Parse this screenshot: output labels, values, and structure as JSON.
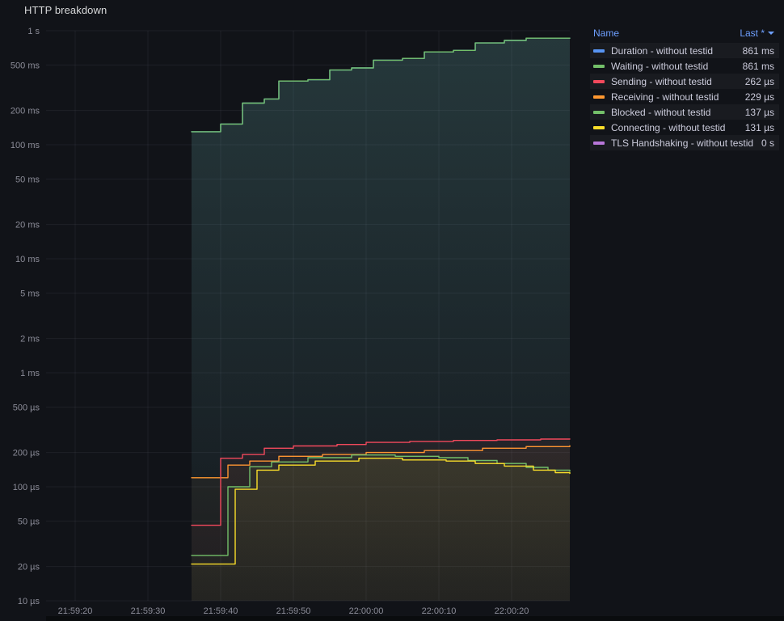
{
  "panel": {
    "title": "HTTP breakdown"
  },
  "legend": {
    "columns": {
      "name": "Name",
      "last": "Last *"
    },
    "rows": [
      {
        "label": "Duration - without testid",
        "value": "861 ms",
        "color": "#5794F2"
      },
      {
        "label": "Waiting - without testid",
        "value": "861 ms",
        "color": "#73BF69"
      },
      {
        "label": "Sending - without testid",
        "value": "262 µs",
        "color": "#F2495C"
      },
      {
        "label": "Receiving - without testid",
        "value": "229 µs",
        "color": "#FF9830"
      },
      {
        "label": "Blocked - without testid",
        "value": "137 µs",
        "color": "#73BF69"
      },
      {
        "label": "Connecting - without testid",
        "value": "131 µs",
        "color": "#FADE2A"
      },
      {
        "label": "TLS Handshaking - without testid",
        "value": "0 s",
        "color": "#B877D9"
      }
    ]
  },
  "chart_data": {
    "type": "line",
    "line_interpolation": "step-after",
    "title": "HTTP breakdown",
    "y_scale": "log",
    "y_unit": "seconds",
    "grid": true,
    "legend_position": "right",
    "x_range": [
      "21:59:16",
      "22:00:28"
    ],
    "y_range": [
      1e-05,
      1
    ],
    "x_ticks": [
      "21:59:20",
      "21:59:30",
      "21:59:40",
      "21:59:50",
      "22:00:00",
      "22:00:10",
      "22:00:20"
    ],
    "y_ticks": [
      {
        "label": "1 s",
        "value": 1
      },
      {
        "label": "500 ms",
        "value": 0.5
      },
      {
        "label": "200 ms",
        "value": 0.2
      },
      {
        "label": "100 ms",
        "value": 0.1
      },
      {
        "label": "50 ms",
        "value": 0.05
      },
      {
        "label": "20 ms",
        "value": 0.02
      },
      {
        "label": "10 ms",
        "value": 0.01
      },
      {
        "label": "5 ms",
        "value": 0.005
      },
      {
        "label": "2 ms",
        "value": 0.002
      },
      {
        "label": "1 ms",
        "value": 0.001
      },
      {
        "label": "500 µs",
        "value": 0.0005
      },
      {
        "label": "200 µs",
        "value": 0.0002
      },
      {
        "label": "100 µs",
        "value": 0.0001
      },
      {
        "label": "50 µs",
        "value": 5e-05
      },
      {
        "label": "20 µs",
        "value": 2e-05
      },
      {
        "label": "10 µs",
        "value": 1e-05
      }
    ],
    "series": [
      {
        "name": "Duration - without testid",
        "color": "#5794F2",
        "last": "861 ms",
        "points": [
          [
            "21:59:36",
            0.13
          ],
          [
            "21:59:40",
            0.152
          ],
          [
            "21:59:43",
            0.232
          ],
          [
            "21:59:46",
            0.252
          ],
          [
            "21:59:48",
            0.362
          ],
          [
            "21:59:52",
            0.372
          ],
          [
            "21:59:55",
            0.452
          ],
          [
            "21:59:58",
            0.472
          ],
          [
            "22:00:01",
            0.552
          ],
          [
            "22:00:05",
            0.572
          ],
          [
            "22:00:08",
            0.652
          ],
          [
            "22:00:12",
            0.672
          ],
          [
            "22:00:15",
            0.782
          ],
          [
            "22:00:19",
            0.822
          ],
          [
            "22:00:22",
            0.861
          ],
          [
            "22:00:28",
            0.861
          ]
        ]
      },
      {
        "name": "Waiting - without testid",
        "color": "#73BF69",
        "last": "861 ms",
        "points": [
          [
            "21:59:36",
            0.13
          ],
          [
            "21:59:40",
            0.152
          ],
          [
            "21:59:43",
            0.232
          ],
          [
            "21:59:46",
            0.252
          ],
          [
            "21:59:48",
            0.362
          ],
          [
            "21:59:52",
            0.372
          ],
          [
            "21:59:55",
            0.452
          ],
          [
            "21:59:58",
            0.472
          ],
          [
            "22:00:01",
            0.552
          ],
          [
            "22:00:05",
            0.572
          ],
          [
            "22:00:08",
            0.652
          ],
          [
            "22:00:12",
            0.672
          ],
          [
            "22:00:15",
            0.782
          ],
          [
            "22:00:19",
            0.822
          ],
          [
            "22:00:22",
            0.861
          ],
          [
            "22:00:28",
            0.861
          ]
        ]
      },
      {
        "name": "Receiving - without testid",
        "color": "#FF9830",
        "last": "229 µs",
        "points": [
          [
            "21:59:36",
            0.00012
          ],
          [
            "21:59:41",
            0.000155
          ],
          [
            "21:59:44",
            0.000168
          ],
          [
            "21:59:48",
            0.000185
          ],
          [
            "21:59:54",
            0.000192
          ],
          [
            "22:00:00",
            0.0002
          ],
          [
            "22:00:08",
            0.000208
          ],
          [
            "22:00:16",
            0.000218
          ],
          [
            "22:00:22",
            0.000225
          ],
          [
            "22:00:28",
            0.000229
          ]
        ]
      },
      {
        "name": "Sending - without testid",
        "color": "#F2495C",
        "last": "262 µs",
        "points": [
          [
            "21:59:36",
            4.6e-05
          ],
          [
            "21:59:40",
            0.000178
          ],
          [
            "21:59:43",
            0.000192
          ],
          [
            "21:59:46",
            0.000218
          ],
          [
            "21:59:50",
            0.000228
          ],
          [
            "21:59:56",
            0.000235
          ],
          [
            "22:00:00",
            0.000245
          ],
          [
            "22:00:06",
            0.00025
          ],
          [
            "22:00:12",
            0.000255
          ],
          [
            "22:00:18",
            0.000258
          ],
          [
            "22:00:24",
            0.000262
          ],
          [
            "22:00:28",
            0.000262
          ]
        ]
      },
      {
        "name": "Blocked - without testid",
        "color": "#73BF69",
        "last": "137 µs",
        "points": [
          [
            "21:59:36",
            2.5e-05
          ],
          [
            "21:59:41",
            0.0001
          ],
          [
            "21:59:44",
            0.00015
          ],
          [
            "21:59:47",
            0.000165
          ],
          [
            "21:59:52",
            0.00018
          ],
          [
            "21:59:58",
            0.00019
          ],
          [
            "22:00:04",
            0.000185
          ],
          [
            "22:00:10",
            0.00018
          ],
          [
            "22:00:14",
            0.00017
          ],
          [
            "22:00:18",
            0.00016
          ],
          [
            "22:00:22",
            0.000148
          ],
          [
            "22:00:25",
            0.00014
          ],
          [
            "22:00:28",
            0.000137
          ]
        ]
      },
      {
        "name": "Connecting - without testid",
        "color": "#FADE2A",
        "last": "131 µs",
        "points": [
          [
            "21:59:36",
            2.1e-05
          ],
          [
            "21:59:42",
            9.5e-05
          ],
          [
            "21:59:45",
            0.00014
          ],
          [
            "21:59:48",
            0.000155
          ],
          [
            "21:59:53",
            0.000168
          ],
          [
            "21:59:59",
            0.000178
          ],
          [
            "22:00:05",
            0.000172
          ],
          [
            "22:00:11",
            0.000168
          ],
          [
            "22:00:15",
            0.00016
          ],
          [
            "22:00:19",
            0.000152
          ],
          [
            "22:00:23",
            0.00014
          ],
          [
            "22:00:26",
            0.000133
          ],
          [
            "22:00:28",
            0.000131
          ]
        ]
      },
      {
        "name": "TLS Handshaking - without testid",
        "color": "#B877D9",
        "last": "0 s",
        "points": []
      }
    ]
  }
}
